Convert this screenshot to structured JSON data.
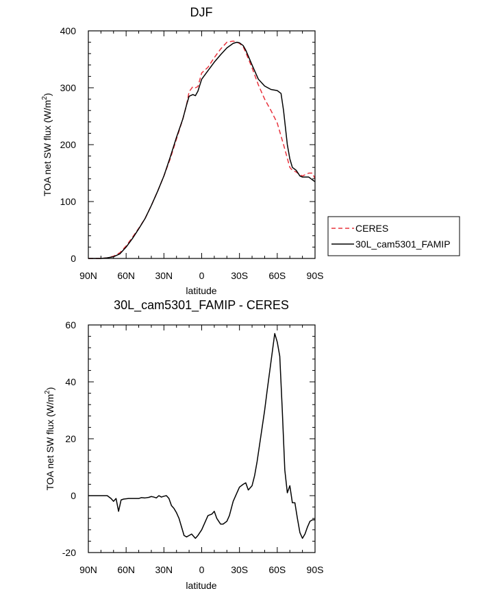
{
  "chart_data": [
    {
      "type": "line",
      "title": "DJF",
      "xlabel": "latitude",
      "ylabel": "TOA net SW flux (W/m",
      "ylabel_sup": "2",
      "ylabel_end": ")",
      "xlim": [
        -90,
        90
      ],
      "ylim": [
        0,
        400
      ],
      "xticks": [
        {
          "value": -90,
          "label": "90N"
        },
        {
          "value": -60,
          "label": "60N"
        },
        {
          "value": -30,
          "label": "30N"
        },
        {
          "value": 0,
          "label": "0"
        },
        {
          "value": 30,
          "label": "30S"
        },
        {
          "value": 60,
          "label": "60S"
        },
        {
          "value": 90,
          "label": "90S"
        }
      ],
      "yticks": [
        0,
        100,
        200,
        300,
        400
      ],
      "legend": {
        "placement": "right",
        "entries": [
          "CERES",
          "30L_cam5301_FAMIP"
        ]
      },
      "series": [
        {
          "name": "CERES",
          "color": "#e8323c",
          "dash": "dashed",
          "x": [
            -90,
            -80,
            -75,
            -70,
            -65,
            -60,
            -55,
            -50,
            -45,
            -40,
            -35,
            -30,
            -25,
            -20,
            -15,
            -12,
            -10,
            -7,
            -5,
            -3,
            0,
            5,
            10,
            15,
            20,
            25,
            28,
            30,
            33,
            35,
            40,
            45,
            50,
            55,
            60,
            65,
            70,
            72,
            75,
            78,
            80,
            85,
            88,
            90
          ],
          "y": [
            0,
            0,
            1,
            4,
            10,
            22,
            37,
            53,
            70,
            93,
            118,
            145,
            175,
            210,
            245,
            270,
            293,
            302,
            300,
            302,
            326,
            336,
            353,
            368,
            380,
            382,
            380,
            378,
            372,
            362,
            335,
            305,
            280,
            260,
            238,
            200,
            160,
            155,
            152,
            147,
            145,
            150,
            150,
            140
          ]
        },
        {
          "name": "30L_cam5301_FAMIP",
          "color": "#000000",
          "dash": "solid",
          "x": [
            -90,
            -80,
            -75,
            -70,
            -65,
            -60,
            -55,
            -50,
            -45,
            -40,
            -35,
            -30,
            -25,
            -20,
            -15,
            -12,
            -10,
            -7,
            -5,
            -3,
            0,
            5,
            10,
            15,
            20,
            25,
            28,
            30,
            33,
            35,
            40,
            45,
            50,
            55,
            60,
            63,
            65,
            68,
            70,
            72,
            75,
            78,
            80,
            85,
            88,
            90
          ],
          "y": [
            0,
            0,
            1,
            3,
            8,
            20,
            35,
            52,
            70,
            93,
            118,
            145,
            178,
            213,
            245,
            270,
            285,
            288,
            286,
            294,
            315,
            330,
            345,
            358,
            370,
            378,
            380,
            379,
            374,
            366,
            340,
            315,
            303,
            297,
            295,
            290,
            260,
            200,
            175,
            160,
            155,
            145,
            143,
            143,
            138,
            135
          ]
        }
      ]
    },
    {
      "type": "line",
      "title": "30L_cam5301_FAMIP - CERES",
      "xlabel": "latitude",
      "ylabel": "TOA net SW flux (W/m",
      "ylabel_sup": "2",
      "ylabel_end": ")",
      "xlim": [
        -90,
        90
      ],
      "ylim": [
        -20,
        60
      ],
      "xticks": [
        {
          "value": -90,
          "label": "90N"
        },
        {
          "value": -60,
          "label": "60N"
        },
        {
          "value": -30,
          "label": "30N"
        },
        {
          "value": 0,
          "label": "0"
        },
        {
          "value": 30,
          "label": "30S"
        },
        {
          "value": 60,
          "label": "60S"
        },
        {
          "value": 90,
          "label": "90S"
        }
      ],
      "yticks": [
        -20,
        0,
        20,
        40,
        60
      ],
      "series": [
        {
          "name": "30L_cam5301_FAMIP - CERES",
          "color": "#000000",
          "dash": "solid",
          "x": [
            -90,
            -75,
            -72,
            -70,
            -68,
            -66,
            -64,
            -62,
            -58,
            -55,
            -50,
            -48,
            -45,
            -42,
            -40,
            -38,
            -36,
            -34,
            -32,
            -30,
            -28,
            -26,
            -24,
            -22,
            -20,
            -18,
            -16,
            -14,
            -12,
            -10,
            -8,
            -5,
            -3,
            0,
            3,
            5,
            8,
            10,
            12,
            15,
            17,
            20,
            22,
            25,
            28,
            30,
            33,
            35,
            37,
            40,
            42,
            44,
            46,
            48,
            50,
            52,
            55,
            58,
            60,
            62,
            64,
            66,
            68,
            70,
            72,
            74,
            76,
            78,
            80,
            82,
            84,
            86,
            88,
            90
          ],
          "y": [
            0,
            0,
            -1,
            -2,
            -1,
            -5.5,
            -1.5,
            -1.2,
            -1,
            -1,
            -1,
            -0.7,
            -0.8,
            -0.6,
            -0.3,
            -0.5,
            -0.8,
            0,
            -0.5,
            -0.2,
            0,
            -1,
            -3.5,
            -4.5,
            -6,
            -8,
            -11,
            -14,
            -14.5,
            -14,
            -13.5,
            -15,
            -14,
            -12,
            -9,
            -7,
            -6.5,
            -5.5,
            -8,
            -10,
            -10,
            -9,
            -7,
            -2,
            1,
            3,
            4,
            4.5,
            2,
            3.5,
            7,
            12,
            18,
            24,
            30,
            37,
            47,
            57,
            54,
            49,
            30,
            9,
            1,
            3.5,
            -2.5,
            -2.5,
            -8,
            -13,
            -15,
            -13.5,
            -11,
            -9,
            -8.5,
            -8.5
          ]
        }
      ]
    }
  ]
}
